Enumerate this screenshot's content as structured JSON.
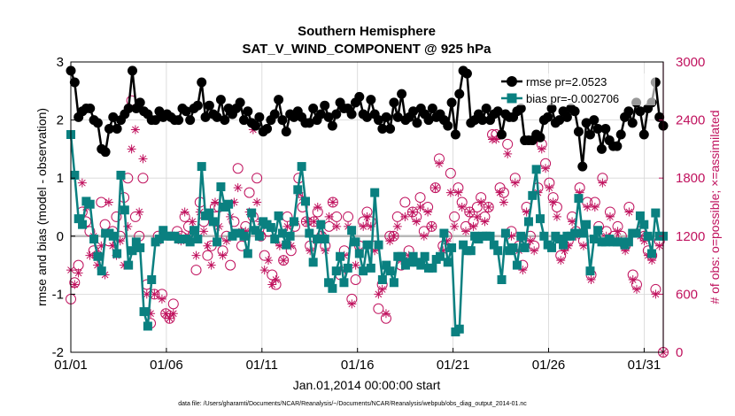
{
  "chart_data": {
    "type": "line",
    "title": "Southern Hemisphere",
    "subtitle": "SAT_V_WIND_COMPONENT @ 925 hPa",
    "xlabel": "Jan.01,2014 00:00:00 start",
    "ylabel_left": "rmse and bias (model - observation)",
    "ylabel_right": "# of obs: o=possible; ×=assimilated",
    "ylim_left": [
      -2,
      3
    ],
    "ylim_right": [
      0,
      3000
    ],
    "xlim_days": [
      1,
      32
    ],
    "x_ticks": [
      "01/01",
      "01/06",
      "01/11",
      "01/16",
      "01/21",
      "01/26",
      "01/31"
    ],
    "y_ticks_left": [
      "-2",
      "-1",
      "0",
      "1",
      "2",
      "3"
    ],
    "y_ticks_right": [
      "0",
      "600",
      "1200",
      "1800",
      "2400",
      "3000"
    ],
    "grid": true,
    "legend_position": "top-right",
    "footnote": "data file: /Users/gharamti/Documents/NCAR/Reanalysis/~/Documents/NCAR/Reanalysis/webpub/obs_diag_output_2014-01.nc",
    "series": [
      {
        "name": "rmse pr=2.0523",
        "axis": "left",
        "color": "#000000",
        "marker": "circle",
        "values": [
          2.85,
          2.65,
          2.05,
          2.15,
          2.2,
          2.2,
          2.0,
          1.95,
          1.5,
          1.45,
          1.85,
          2.05,
          1.85,
          2.0,
          2.1,
          2.2,
          2.85,
          2.2,
          2.3,
          2.15,
          2.1,
          2.0,
          2.0,
          2.15,
          2.05,
          2.1,
          2.05,
          2.0,
          2.0,
          2.2,
          2.15,
          2.0,
          2.2,
          2.25,
          2.65,
          2.05,
          2.25,
          2.1,
          2.05,
          2.35,
          2.0,
          2.2,
          2.1,
          2.2,
          2.3,
          2.0,
          2.15,
          1.95,
          1.9,
          2.05,
          1.8,
          1.85,
          2.0,
          2.1,
          2.35,
          2.0,
          1.8,
          2.1,
          2.05,
          2.15,
          2.05,
          1.95,
          1.95,
          2.2,
          2.0,
          2.1,
          2.25,
          2.05,
          1.9,
          2.1,
          2.3,
          2.2,
          2.2,
          2.1,
          2.3,
          2.4,
          2.1,
          2.05,
          2.35,
          2.1,
          2.0,
          1.85,
          2.05,
          1.85,
          2.3,
          2.05,
          2.45,
          2.0,
          2.05,
          2.15,
          1.95,
          2.2,
          2.1,
          2.0,
          2.2,
          2.05,
          2.1,
          2.0,
          1.9,
          2.3,
          1.75,
          2.45,
          2.85,
          2.8,
          1.95,
          2.0,
          2.1,
          2.0,
          2.2,
          2.0,
          2.1,
          2.15,
          1.75,
          2.1,
          2.05,
          2.05,
          2.15,
          2.2,
          1.65,
          1.65,
          1.65,
          1.75,
          1.7,
          2.0,
          2.05,
          2.2,
          1.95,
          2.0,
          2.15,
          2.05,
          2.2,
          2.15,
          1.8,
          1.2,
          1.95,
          1.75,
          2.0,
          1.85,
          1.5,
          1.85,
          1.65,
          1.55,
          1.55,
          1.75,
          2.05,
          2.15,
          1.95,
          2.3,
          2.15,
          1.75,
          2.2,
          2.3,
          2.65,
          2.05,
          1.9
        ]
      },
      {
        "name": "bias pr=-0.002706",
        "axis": "left",
        "color": "#0a8080",
        "marker": "square",
        "values": [
          1.75,
          1.05,
          0.3,
          0.2,
          0.6,
          0.55,
          -0.05,
          -0.35,
          -0.6,
          0.05,
          0.05,
          0.0,
          -0.3,
          1.05,
          0.45,
          -0.5,
          -0.25,
          -0.1,
          -0.2,
          -1.3,
          -1.55,
          -0.75,
          -0.1,
          -0.05,
          0.1,
          0.0,
          0.0,
          0.0,
          -0.05,
          -0.05,
          -0.05,
          -0.1,
          0.1,
          -0.05,
          1.2,
          0.35,
          0.4,
          0.25,
          -0.1,
          0.85,
          0.5,
          0.55,
          0.0,
          0.05,
          0.05,
          0.0,
          -0.3,
          0.4,
          0.1,
          0.0,
          0.25,
          0.2,
          0.15,
          -0.05,
          0.35,
          0.05,
          -0.15,
          0.0,
          0.25,
          0.8,
          1.2,
          0.6,
          0.05,
          -0.45,
          -0.05,
          0.2,
          -0.05,
          -0.8,
          -0.9,
          -0.6,
          -0.35,
          -0.8,
          -0.55,
          0.1,
          -0.1,
          -0.3,
          -0.6,
          -0.15,
          -0.55,
          0.75,
          -0.15,
          -0.75,
          -0.5,
          -0.6,
          -0.8,
          -0.35,
          -0.35,
          -0.5,
          -0.45,
          -0.35,
          -0.45,
          -0.5,
          -0.35,
          -0.55,
          -0.55,
          -0.4,
          -0.35,
          0.05,
          -0.45,
          -0.2,
          -1.65,
          -1.6,
          -0.15,
          -0.25,
          -0.25,
          0.0,
          -0.05,
          0.0,
          0.0,
          0.0,
          -0.15,
          -0.25,
          -0.75,
          0.05,
          -0.25,
          -0.2,
          -0.5,
          0.0,
          -0.2,
          0.25,
          0.7,
          1.15,
          0.3,
          0.0,
          -0.15,
          -0.2,
          0.0,
          -0.05,
          -0.15,
          0.0,
          0.0,
          0.05,
          0.65,
          0.05,
          0.2,
          -0.6,
          -0.05,
          0.1,
          -0.1,
          -0.1,
          -0.05,
          -0.1,
          -0.1,
          -0.1,
          -0.15,
          -0.1,
          0.05,
          0.05,
          0.35,
          0.2,
          0.0,
          -0.3,
          0.4,
          0.0,
          0.0
        ]
      },
      {
        "name": "possible",
        "axis": "right",
        "color": "#c0125e",
        "marker": "circle-open",
        "values": [
          550,
          720,
          900,
          1450,
          1350,
          1250,
          1050,
          1000,
          1550,
          1320,
          1150,
          1250,
          1400,
          1200,
          1600,
          1800,
          2600,
          1400,
          1200,
          1800,
          700,
          300,
          600,
          1200,
          600,
          400,
          350,
          500,
          1250,
          1200,
          1400,
          1300,
          1200,
          850,
          1550,
          1350,
          1000,
          1100,
          1500,
          1500,
          1050,
          1200,
          900,
          1350,
          1900,
          1100,
          1300,
          1650,
          1400,
          1800,
          1200,
          1000,
          1250,
          800,
          700,
          1150,
          950,
          1400,
          1050,
          1300,
          1800,
          1500,
          1350,
          1100,
          1350,
          1450,
          1200,
          1100,
          1300,
          1550,
          1400,
          800,
          1050,
          1400,
          550,
          750,
          1100,
          1350,
          1450,
          1350,
          1100,
          450,
          700,
          350,
          1200,
          1200,
          1400,
          900,
          1550,
          1050,
          1450,
          1400,
          1600,
          1250,
          1500,
          1300,
          1700,
          2000,
          1100,
          1200,
          1850,
          1400,
          1700,
          1550,
          1300,
          1450,
          1350,
          1500,
          1600,
          1400,
          1500,
          2250,
          2250,
          1700,
          1650,
          2150,
          1250,
          1800,
          1100,
          900,
          1500,
          1200,
          1100,
          1700,
          2150,
          1950,
          1750,
          1600,
          1500,
          1000,
          1100,
          1150,
          1400,
          1250,
          1700,
          1150,
          1550,
          800,
          1550,
          1300,
          1800,
          1250,
          1450,
          1200,
          1300,
          1200,
          1100,
          1500,
          800,
          700,
          1250,
          1200,
          1050,
          1000,
          650,
          1150,
          0
        ]
      },
      {
        "name": "assimilated",
        "axis": "right",
        "color": "#c0125e",
        "marker": "asterisk",
        "values": [
          850,
          700,
          820,
          1750,
          1500,
          1000,
          1200,
          900,
          1100,
          800,
          1550,
          1100,
          1000,
          1150,
          900,
          1300,
          2100,
          2300,
          1450,
          2000,
          600,
          400,
          600,
          1150,
          550,
          400,
          350,
          400,
          1200,
          1150,
          1450,
          1200,
          1350,
          1000,
          1450,
          1250,
          1100,
          900,
          1550,
          1300,
          1000,
          1150,
          1400,
          1550,
          1700,
          1250,
          1250,
          1450,
          2300,
          1550,
          1350,
          850,
          950,
          700,
          750,
          1100,
          950,
          1300,
          1100,
          1350,
          1650,
          1600,
          1350,
          1050,
          1350,
          1500,
          1200,
          1050,
          1400,
          1550,
          1300,
          850,
          1000,
          1300,
          500,
          900,
          1050,
          1300,
          1400,
          1300,
          1050,
          600,
          650,
          400,
          1150,
          1200,
          1300,
          950,
          1400,
          1000,
          1450,
          1350,
          1500,
          1200,
          1450,
          1300,
          1700,
          1950,
          1050,
          1150,
          1650,
          1300,
          1650,
          1500,
          1250,
          1450,
          1300,
          1400,
          1550,
          1350,
          1500,
          2200,
          2200,
          1650,
          1550,
          2050,
          1200,
          1750,
          1050,
          850,
          1450,
          1150,
          1050,
          1650,
          2100,
          1900,
          1700,
          1550,
          1400,
          950,
          1050,
          1100,
          1350,
          1200,
          1650,
          1100,
          1500,
          750,
          1500,
          1250,
          1750,
          1200,
          1400,
          1150,
          1250,
          1150,
          1050,
          1450,
          750,
          650,
          1200,
          1150,
          1000,
          950,
          600,
          1100,
          0
        ]
      }
    ]
  }
}
